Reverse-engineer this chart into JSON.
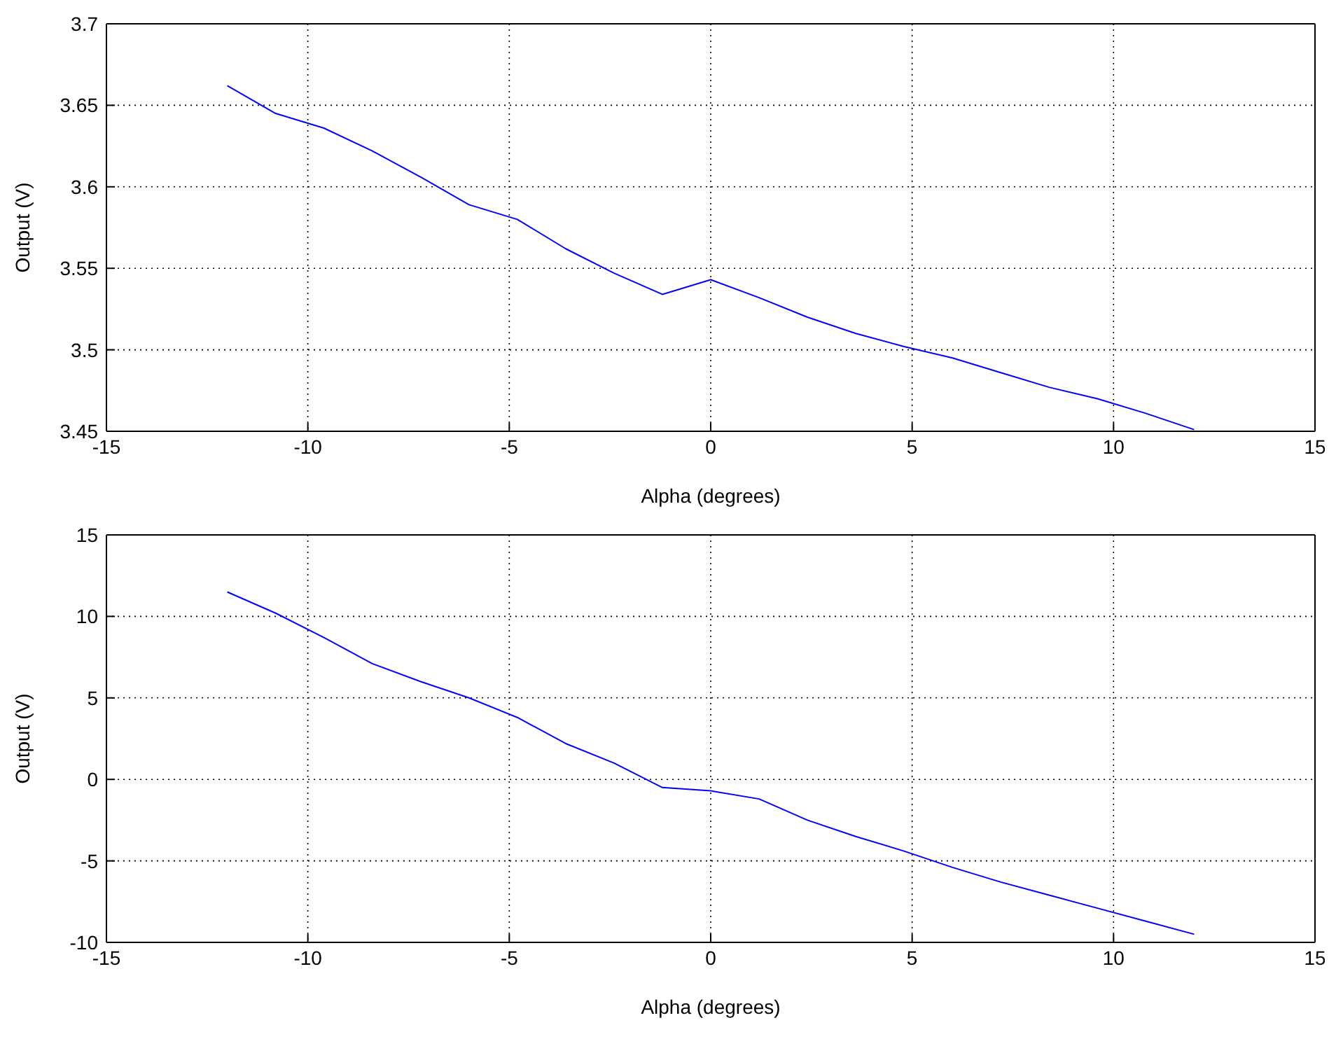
{
  "chart_data": [
    {
      "type": "line",
      "xlabel": "Alpha (degrees)",
      "ylabel": "Output (V)",
      "color": "#0000ff",
      "grid": true,
      "marker": "none",
      "x": [
        -12,
        -10.8,
        -9.6,
        -8.4,
        -7.2,
        -6,
        -4.8,
        -3.6,
        -2.4,
        -1.2,
        0,
        1.2,
        2.4,
        3.6,
        4.8,
        6,
        7.2,
        8.4,
        9.6,
        10.8,
        12
      ],
      "values": [
        3.662,
        3.645,
        3.636,
        3.622,
        3.606,
        3.589,
        3.58,
        3.562,
        3.547,
        3.534,
        3.543,
        3.532,
        3.52,
        3.51,
        3.502,
        3.495,
        3.486,
        3.477,
        3.47,
        3.461,
        3.451
      ],
      "xlim": [
        -15,
        15
      ],
      "xticks": [
        -15,
        -10,
        -5,
        0,
        5,
        10,
        15
      ],
      "ylim": [
        3.45,
        3.7
      ],
      "yticks": [
        3.45,
        3.5,
        3.55,
        3.6,
        3.65,
        3.7
      ]
    },
    {
      "type": "line",
      "xlabel": "Alpha (degrees)",
      "ylabel": "Output (V)",
      "color": "#0000ff",
      "grid": true,
      "marker": "none",
      "x": [
        -12,
        -10.8,
        -9.6,
        -8.4,
        -7.2,
        -6,
        -4.8,
        -3.6,
        -2.4,
        -1.2,
        0,
        1.2,
        2.4,
        3.6,
        4.8,
        6,
        7.2,
        8.4,
        9.6,
        10.8,
        12
      ],
      "values": [
        11.5,
        10.2,
        8.7,
        7.1,
        6.0,
        5.0,
        3.8,
        2.2,
        1.0,
        -0.5,
        -0.7,
        -1.2,
        -2.5,
        -3.5,
        -4.4,
        -5.4,
        -6.3,
        -7.1,
        -7.9,
        -8.7,
        -9.5
      ],
      "xlim": [
        -15,
        15
      ],
      "xticks": [
        -15,
        -10,
        -5,
        0,
        5,
        10,
        15
      ],
      "ylim": [
        -10,
        15
      ],
      "yticks": [
        -10,
        -5,
        0,
        5,
        10,
        15
      ]
    }
  ]
}
